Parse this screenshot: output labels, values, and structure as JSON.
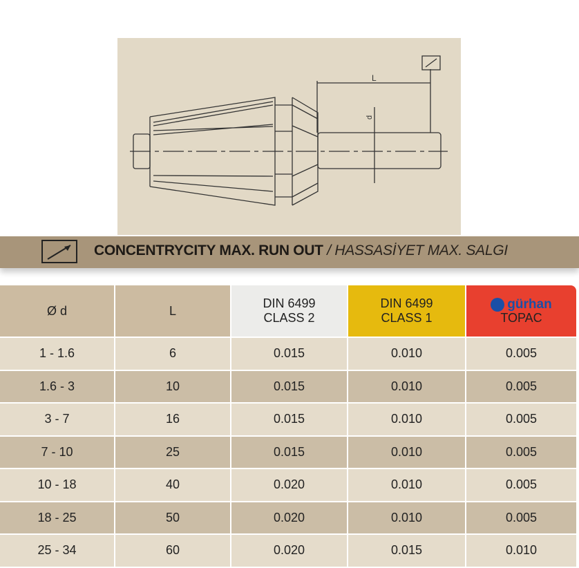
{
  "drawing": {
    "dim_length_label": "L",
    "dim_diameter_label": "d",
    "runout_symbol": "runout-arrow-icon"
  },
  "banner": {
    "title_en": "CONCENTRYCITY MAX. RUN OUT",
    "separator": " / ",
    "title_tr": "HASSASİYET MAX. SALGI",
    "icon": "runout-arrow-icon"
  },
  "table": {
    "headers": [
      "Ø d",
      "L",
      [
        "DIN 6499",
        "CLASS 2"
      ],
      [
        "DIN 6499",
        "CLASS 1"
      ],
      [
        "gürhan",
        "TOPAC"
      ]
    ],
    "header_colors": [
      "#ccbba1",
      "#ccbba1",
      "#ececea",
      "#e6ba0e",
      "#e8402f"
    ],
    "rows": [
      [
        "1 - 1.6",
        "6",
        "0.015",
        "0.010",
        "0.005"
      ],
      [
        "1.6 - 3",
        "10",
        "0.015",
        "0.010",
        "0.005"
      ],
      [
        "3 - 7",
        "16",
        "0.015",
        "0.010",
        "0.005"
      ],
      [
        "7 - 10",
        "25",
        "0.015",
        "0.010",
        "0.005"
      ],
      [
        "10 - 18",
        "40",
        "0.020",
        "0.010",
        "0.005"
      ],
      [
        "18 - 25",
        "50",
        "0.020",
        "0.010",
        "0.005"
      ],
      [
        "25 - 34",
        "60",
        "0.020",
        "0.015",
        "0.010"
      ]
    ]
  }
}
